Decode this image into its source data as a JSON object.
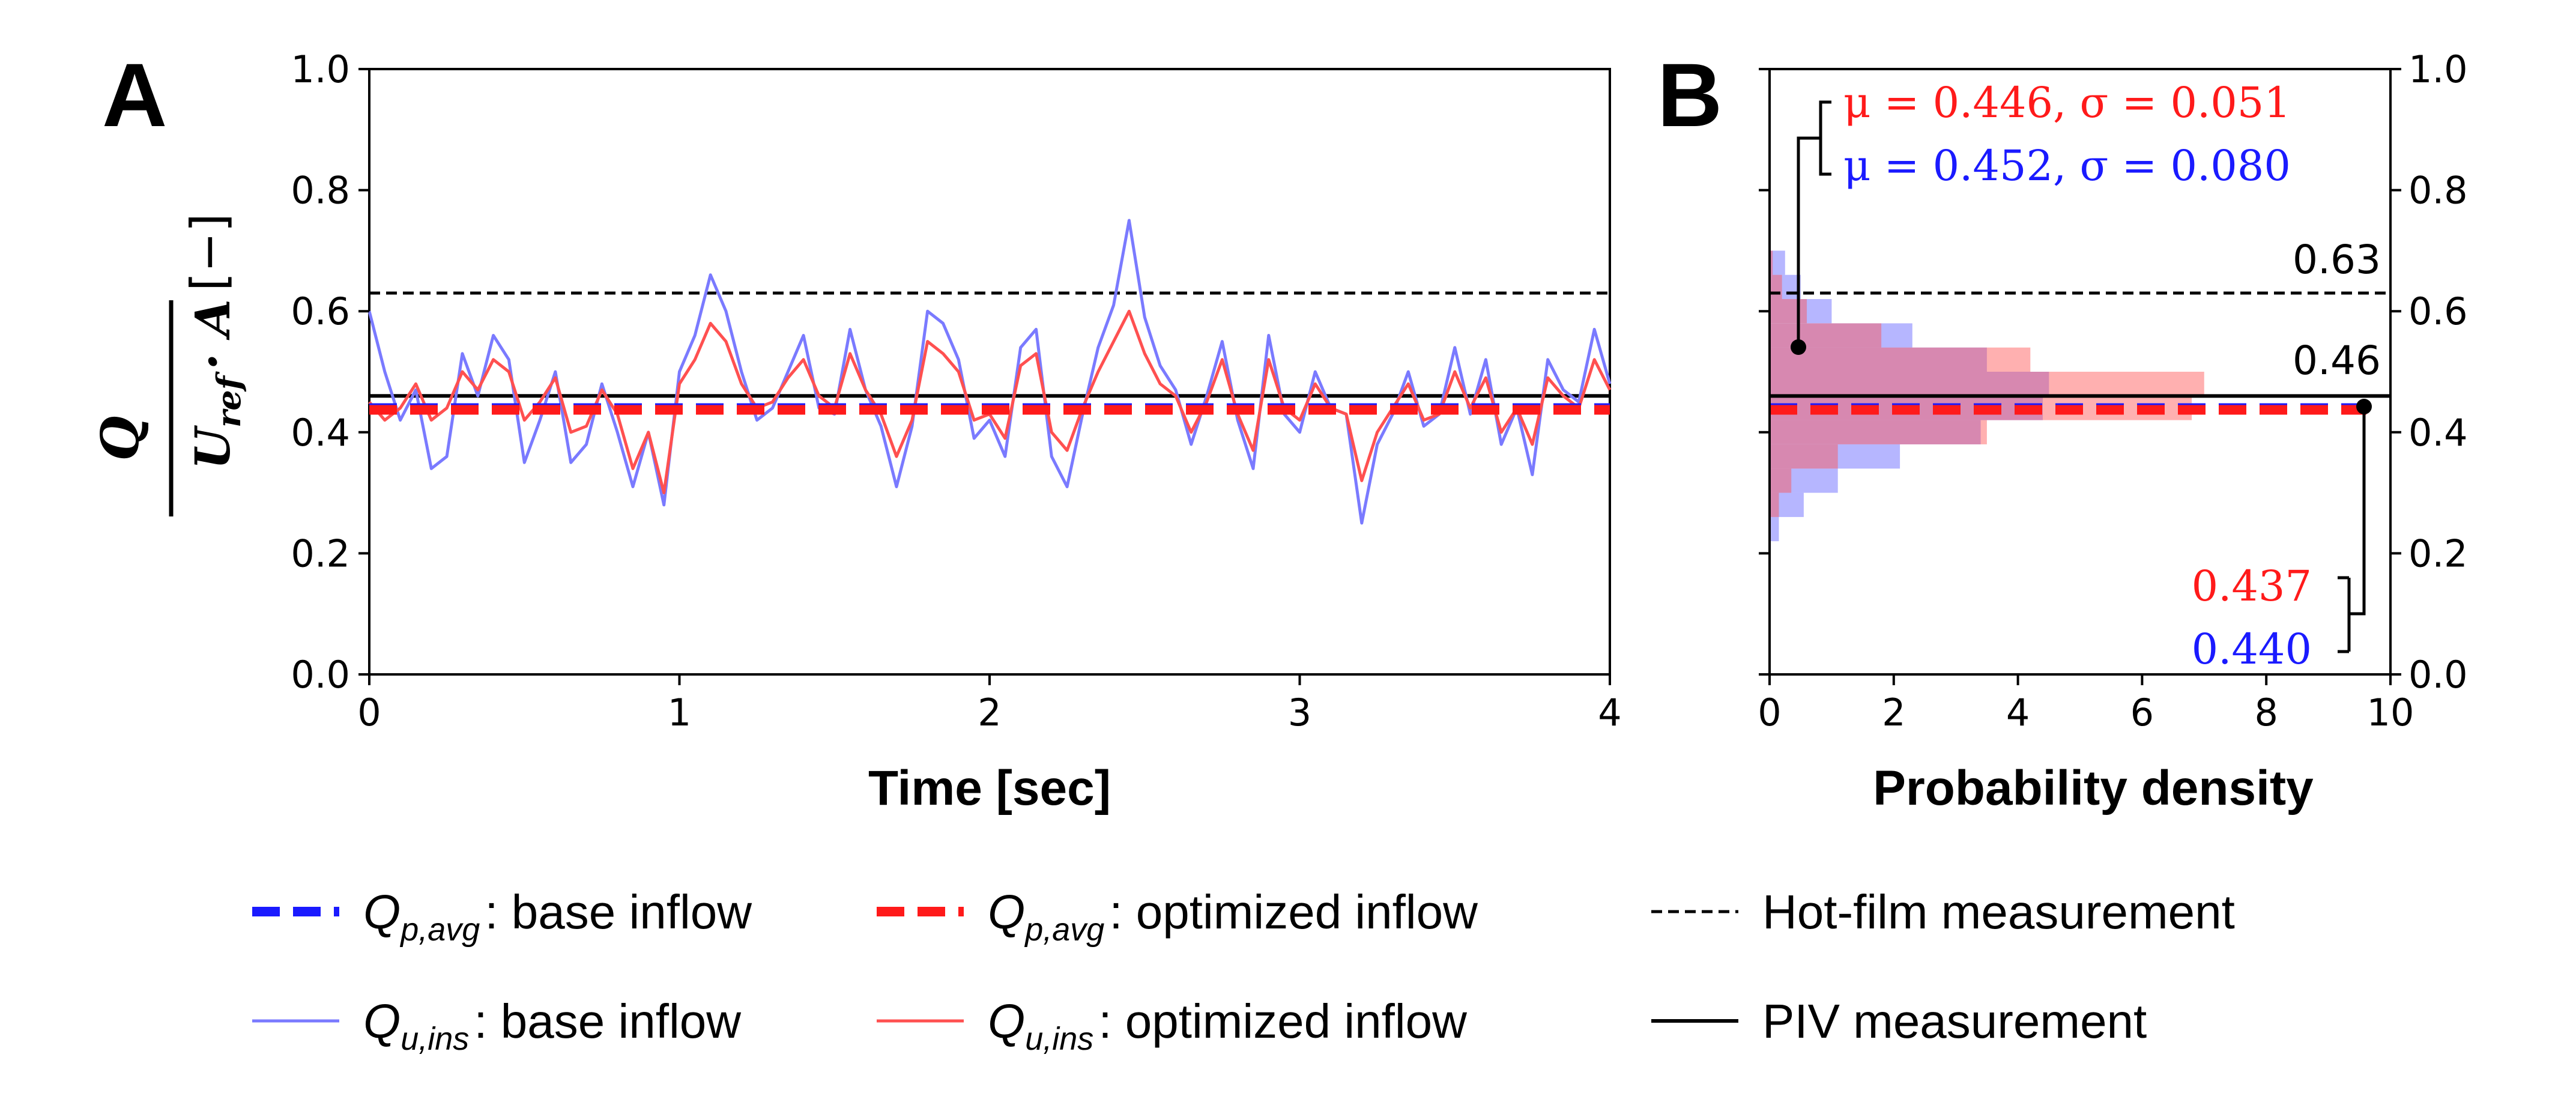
{
  "panels": {
    "a": {
      "letter": "A",
      "xlabel": "Time [sec]"
    },
    "b": {
      "letter": "B",
      "xlabel": "Probability density"
    }
  },
  "ylabel": {
    "num": "Q",
    "den_main": "U",
    "den_sub": "ref",
    "den_rest": "· A",
    "unit": "[−]"
  },
  "colors": {
    "base": "#1a1aff",
    "optimized": "#ff1a1a",
    "base_light": "#7a7aff",
    "optimized_light": "#ff5050",
    "reference": "#000000"
  },
  "chart_data": [
    {
      "type": "line",
      "title": "A",
      "xlabel": "Time [sec]",
      "ylabel": "Q / (U_ref · A) [−]",
      "xlim": [
        0,
        4
      ],
      "ylim": [
        0,
        1.0
      ],
      "xticks": [
        "0",
        "1",
        "2",
        "3",
        "4"
      ],
      "yticks": [
        "0.0",
        "0.2",
        "0.4",
        "0.6",
        "0.8",
        "1.0"
      ],
      "series": [
        {
          "name": "Q_u,ins : base inflow",
          "style": "thin-solid-blue",
          "x": [
            0.0,
            0.05,
            0.1,
            0.15,
            0.2,
            0.25,
            0.3,
            0.35,
            0.4,
            0.45,
            0.5,
            0.55,
            0.6,
            0.65,
            0.7,
            0.75,
            0.8,
            0.85,
            0.9,
            0.95,
            1.0,
            1.05,
            1.1,
            1.15,
            1.2,
            1.25,
            1.3,
            1.35,
            1.4,
            1.45,
            1.5,
            1.55,
            1.6,
            1.65,
            1.7,
            1.75,
            1.8,
            1.85,
            1.9,
            1.95,
            2.0,
            2.05,
            2.1,
            2.15,
            2.2,
            2.25,
            2.3,
            2.35,
            2.4,
            2.45,
            2.5,
            2.55,
            2.6,
            2.65,
            2.7,
            2.75,
            2.8,
            2.85,
            2.9,
            2.95,
            3.0,
            3.05,
            3.1,
            3.15,
            3.2,
            3.25,
            3.3,
            3.35,
            3.4,
            3.45,
            3.5,
            3.55,
            3.6,
            3.65,
            3.7,
            3.75,
            3.8,
            3.85,
            3.9,
            3.95,
            4.0
          ],
          "values": [
            0.6,
            0.5,
            0.42,
            0.47,
            0.34,
            0.36,
            0.53,
            0.46,
            0.56,
            0.52,
            0.35,
            0.42,
            0.5,
            0.35,
            0.38,
            0.48,
            0.4,
            0.31,
            0.4,
            0.28,
            0.5,
            0.56,
            0.66,
            0.6,
            0.5,
            0.42,
            0.44,
            0.5,
            0.56,
            0.44,
            0.43,
            0.57,
            0.47,
            0.41,
            0.31,
            0.41,
            0.6,
            0.58,
            0.52,
            0.39,
            0.42,
            0.36,
            0.54,
            0.57,
            0.36,
            0.31,
            0.43,
            0.54,
            0.61,
            0.75,
            0.59,
            0.51,
            0.47,
            0.38,
            0.46,
            0.55,
            0.42,
            0.34,
            0.56,
            0.43,
            0.4,
            0.5,
            0.44,
            0.43,
            0.25,
            0.38,
            0.43,
            0.5,
            0.41,
            0.43,
            0.54,
            0.43,
            0.52,
            0.38,
            0.44,
            0.33,
            0.52,
            0.47,
            0.45,
            0.57,
            0.48
          ]
        },
        {
          "name": "Q_u,ins : optimized inflow",
          "style": "thin-solid-red",
          "x": [
            0.0,
            0.05,
            0.1,
            0.15,
            0.2,
            0.25,
            0.3,
            0.35,
            0.4,
            0.45,
            0.5,
            0.55,
            0.6,
            0.65,
            0.7,
            0.75,
            0.8,
            0.85,
            0.9,
            0.95,
            1.0,
            1.05,
            1.1,
            1.15,
            1.2,
            1.25,
            1.3,
            1.35,
            1.4,
            1.45,
            1.5,
            1.55,
            1.6,
            1.65,
            1.7,
            1.75,
            1.8,
            1.85,
            1.9,
            1.95,
            2.0,
            2.05,
            2.1,
            2.15,
            2.2,
            2.25,
            2.3,
            2.35,
            2.4,
            2.45,
            2.5,
            2.55,
            2.6,
            2.65,
            2.7,
            2.75,
            2.8,
            2.85,
            2.9,
            2.95,
            3.0,
            3.05,
            3.1,
            3.15,
            3.2,
            3.25,
            3.3,
            3.35,
            3.4,
            3.45,
            3.5,
            3.55,
            3.6,
            3.65,
            3.7,
            3.75,
            3.8,
            3.85,
            3.9,
            3.95,
            4.0
          ],
          "values": [
            0.45,
            0.42,
            0.44,
            0.48,
            0.42,
            0.44,
            0.5,
            0.47,
            0.52,
            0.5,
            0.42,
            0.45,
            0.49,
            0.4,
            0.41,
            0.47,
            0.43,
            0.34,
            0.4,
            0.3,
            0.48,
            0.52,
            0.58,
            0.55,
            0.48,
            0.44,
            0.45,
            0.49,
            0.52,
            0.46,
            0.44,
            0.53,
            0.47,
            0.43,
            0.36,
            0.42,
            0.55,
            0.53,
            0.5,
            0.42,
            0.43,
            0.39,
            0.51,
            0.53,
            0.4,
            0.37,
            0.44,
            0.5,
            0.55,
            0.6,
            0.53,
            0.48,
            0.46,
            0.4,
            0.45,
            0.52,
            0.43,
            0.37,
            0.52,
            0.44,
            0.42,
            0.48,
            0.44,
            0.43,
            0.32,
            0.4,
            0.44,
            0.48,
            0.42,
            0.43,
            0.5,
            0.44,
            0.49,
            0.4,
            0.44,
            0.38,
            0.49,
            0.46,
            0.44,
            0.52,
            0.47
          ]
        },
        {
          "name": "Q_p,avg : base inflow",
          "style": "thick-dashed-blue",
          "x": [
            0,
            4
          ],
          "values": [
            0.44,
            0.44
          ]
        },
        {
          "name": "Q_p,avg : optimized inflow",
          "style": "thick-dashed-red",
          "x": [
            0,
            4
          ],
          "values": [
            0.437,
            0.437
          ]
        },
        {
          "name": "Hot-film measurement",
          "style": "thin-dashed-black",
          "x": [
            0,
            4
          ],
          "values": [
            0.63,
            0.63
          ]
        },
        {
          "name": "PIV measurement",
          "style": "thin-solid-black",
          "x": [
            0,
            4
          ],
          "values": [
            0.46,
            0.46
          ]
        }
      ]
    },
    {
      "type": "bar",
      "orientation": "horizontal-histogram",
      "title": "B",
      "xlabel": "Probability density",
      "xlim": [
        0,
        10
      ],
      "ylim": [
        0,
        1.0
      ],
      "xticks": [
        "0",
        "2",
        "4",
        "6",
        "8",
        "10"
      ],
      "yticks": [
        "0.0",
        "0.2",
        "0.4",
        "0.6",
        "0.8",
        "1.0"
      ],
      "bin_edges": [
        0.22,
        0.26,
        0.3,
        0.34,
        0.38,
        0.42,
        0.46,
        0.5,
        0.54,
        0.58,
        0.62,
        0.66,
        0.7
      ],
      "series": [
        {
          "name": "base inflow",
          "values": [
            0.15,
            0.55,
            1.1,
            2.1,
            3.4,
            4.4,
            4.5,
            3.5,
            2.3,
            1.0,
            0.5,
            0.25
          ]
        },
        {
          "name": "optimized inflow",
          "values": [
            0.0,
            0.15,
            0.35,
            1.1,
            3.5,
            6.8,
            7.0,
            4.2,
            1.8,
            0.6,
            0.2,
            0.05
          ]
        }
      ],
      "hlines": [
        {
          "name": "Q_p,avg base",
          "value": 0.44,
          "style": "thick-dashed-blue"
        },
        {
          "name": "Q_p,avg optimized",
          "value": 0.437,
          "style": "thick-dashed-red"
        },
        {
          "name": "Hot-film measurement",
          "value": 0.63,
          "style": "thin-dashed-black"
        },
        {
          "name": "PIV measurement",
          "value": 0.46,
          "style": "thin-solid-black"
        }
      ],
      "annotations": {
        "stat_red": "μ = 0.446, σ = 0.051",
        "stat_blue": "μ = 0.452, σ = 0.080",
        "hot_film_value": "0.63",
        "piv_value": "0.46",
        "avg_red": "0.437",
        "avg_blue": "0.440"
      }
    }
  ],
  "legend": {
    "items": [
      {
        "q": "Q",
        "sub": "p,avg",
        "text": ": base inflow",
        "style": "thick-dashed-blue"
      },
      {
        "q": "Q",
        "sub": "p,avg",
        "text": ": optimized inflow",
        "style": "thick-dashed-red"
      },
      {
        "q": "",
        "sub": "",
        "text": "Hot-film measurement",
        "style": "thin-dashed-black"
      },
      {
        "q": "Q",
        "sub": "u,ins",
        "text": ": base inflow",
        "style": "thin-solid-blue"
      },
      {
        "q": "Q",
        "sub": "u,ins",
        "text": ": optimized inflow",
        "style": "thin-solid-red"
      },
      {
        "q": "",
        "sub": "",
        "text": "PIV measurement",
        "style": "thin-solid-black"
      }
    ]
  }
}
